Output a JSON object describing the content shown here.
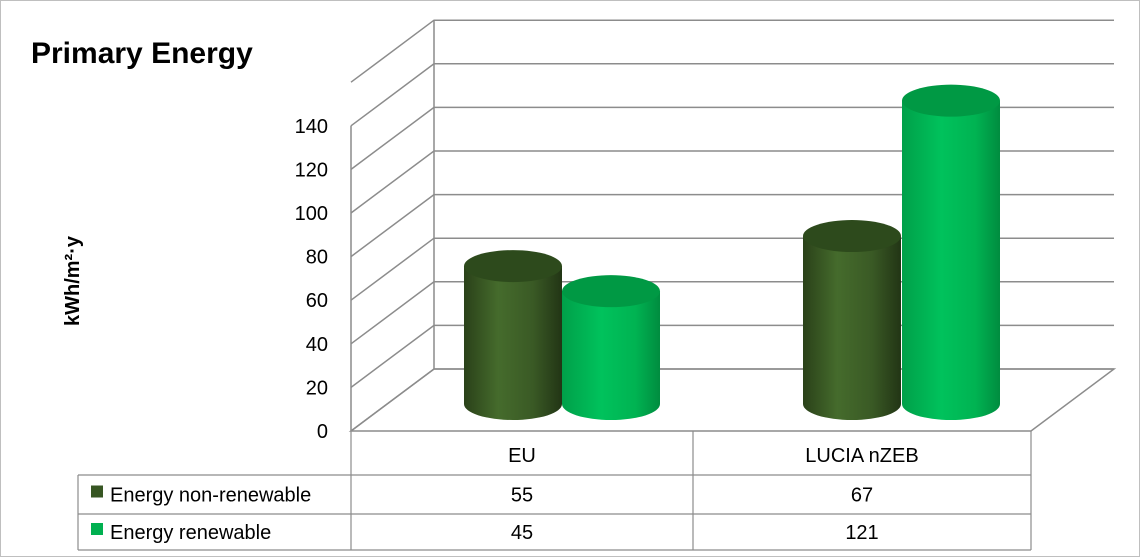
{
  "chart_data": {
    "type": "bar",
    "title": "Primary Energy",
    "ylabel": "kWh/m²·y",
    "xlabel": "",
    "ylim": [
      0,
      140
    ],
    "y_ticks": [
      "0",
      "20",
      "40",
      "60",
      "80",
      "100",
      "120",
      "140"
    ],
    "categories": [
      "EU",
      "LUCIA nZEB"
    ],
    "series": [
      {
        "name": "Energy non-renewable",
        "values": [
          55,
          67
        ],
        "color": "#375623"
      },
      {
        "name": "Energy renewable",
        "values": [
          45,
          121
        ],
        "color": "#00b050"
      }
    ],
    "grid": true,
    "legend": "data-table",
    "bar_shape": "3d-cylinder"
  },
  "table": {
    "values_text": [
      [
        "55",
        "67"
      ],
      [
        "45",
        "121"
      ]
    ]
  }
}
